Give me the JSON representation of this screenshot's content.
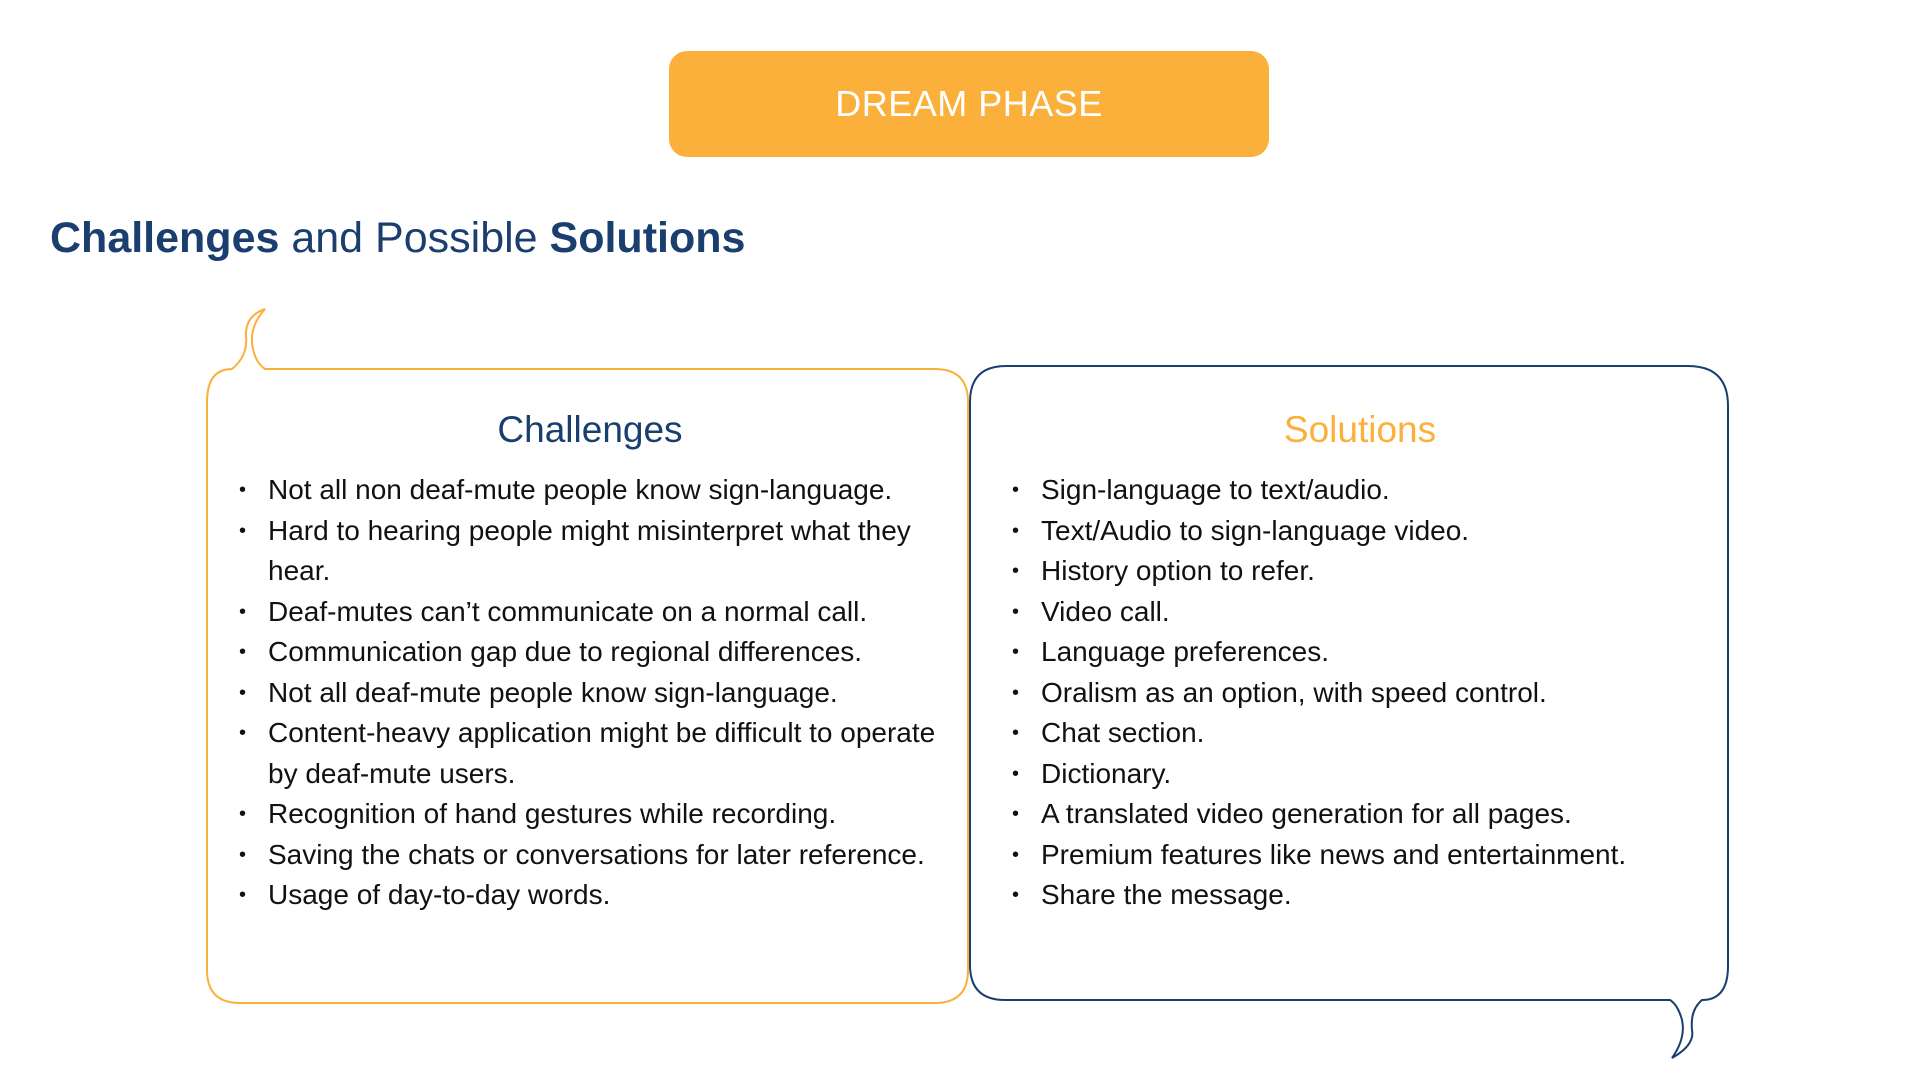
{
  "header": {
    "phase_label": "DREAM PHASE"
  },
  "title": {
    "part1": "Challenges",
    "part2": " and Possible ",
    "part3": "Solutions"
  },
  "challenges": {
    "heading": "Challenges",
    "items": [
      "Not all non deaf-mute people know sign-language.",
      "Hard to hearing people might misinterpret what they hear.",
      "Deaf-mutes can’t communicate on a normal call.",
      "Communication gap due to regional differences.",
      "Not all deaf-mute people know sign-language.",
      "Content-heavy application might be difficult to operate by deaf-mute users.",
      "Recognition of hand gestures while recording.",
      "Saving the chats or conversations for later reference.",
      "Usage of day-to-day words."
    ]
  },
  "solutions": {
    "heading": "Solutions",
    "items": [
      "Sign-language to text/audio.",
      "Text/Audio to sign-language video.",
      "History option to refer.",
      "Video call.",
      "Language preferences.",
      "Oralism as an option, with speed control.",
      "Chat section.",
      "Dictionary.",
      "A translated video generation for all pages.",
      "Premium features like news and entertainment.",
      "Share the message."
    ]
  },
  "colors": {
    "accent_orange": "#FBB03B",
    "brand_navy": "#1A3F6F",
    "text": "#111111",
    "background": "#FFFFFF"
  }
}
